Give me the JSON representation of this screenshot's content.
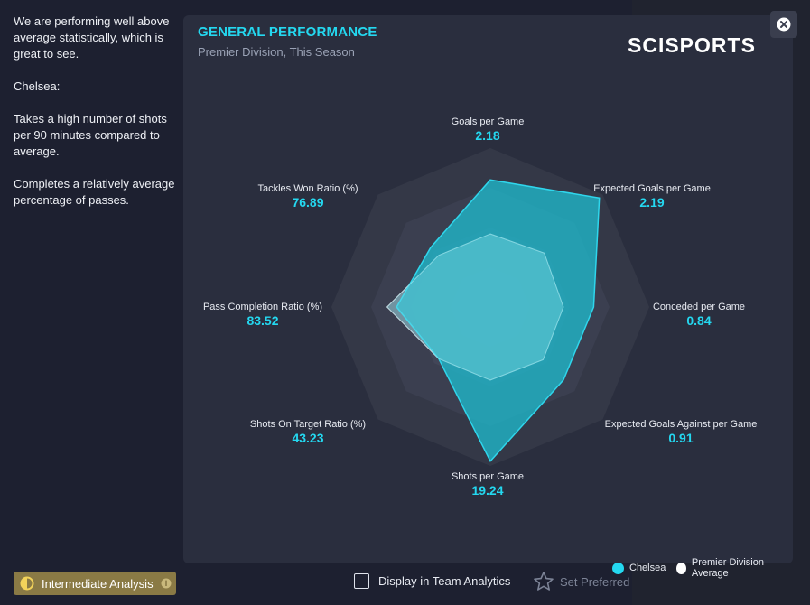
{
  "left_text": {
    "p1": "We are performing well above average statistically, which is great to see.",
    "p2": "Chelsea:",
    "p3": "Takes a high number of shots per 90 minutes compared to average.",
    "p4": "Completes a relatively average percentage of passes."
  },
  "panel": {
    "title": "GENERAL PERFORMANCE",
    "subtitle": "Premier Division, This Season",
    "brand": "SCISPORTS"
  },
  "chart_data": {
    "type": "radar",
    "axes": [
      {
        "label": "Goals per Game",
        "value": "2.18"
      },
      {
        "label": "Expected Goals per Game",
        "value": "2.19"
      },
      {
        "label": "Conceded per Game",
        "value": "0.84"
      },
      {
        "label": "Expected Goals Against per Game",
        "value": "0.91"
      },
      {
        "label": "Shots per Game",
        "value": "19.24"
      },
      {
        "label": "Shots On Target Ratio (%)",
        "value": "43.23"
      },
      {
        "label": "Pass Completion Ratio (%)",
        "value": "83.52"
      },
      {
        "label": "Tackles Won Ratio (%)",
        "value": "76.89"
      }
    ],
    "series": [
      {
        "name": "Chelsea",
        "color": "#1fb9cc",
        "normalized": [
          0.8,
          0.97,
          0.65,
          0.65,
          0.97,
          0.46,
          0.59,
          0.53
        ]
      },
      {
        "name": "Premier Division Average",
        "color": "#ffffff",
        "normalized": [
          0.46,
          0.48,
          0.46,
          0.47,
          0.46,
          0.46,
          0.65,
          0.46
        ]
      }
    ],
    "rings": 4
  },
  "legend": {
    "chelsea": "Chelsea",
    "average": "Premier Division Average"
  },
  "footer": {
    "intermediate": "Intermediate Analysis",
    "display_analytics": "Display in Team Analytics",
    "set_preferred": "Set Preferred"
  },
  "colors": {
    "accent": "#24d8f0",
    "badge": "#8a7a45"
  }
}
